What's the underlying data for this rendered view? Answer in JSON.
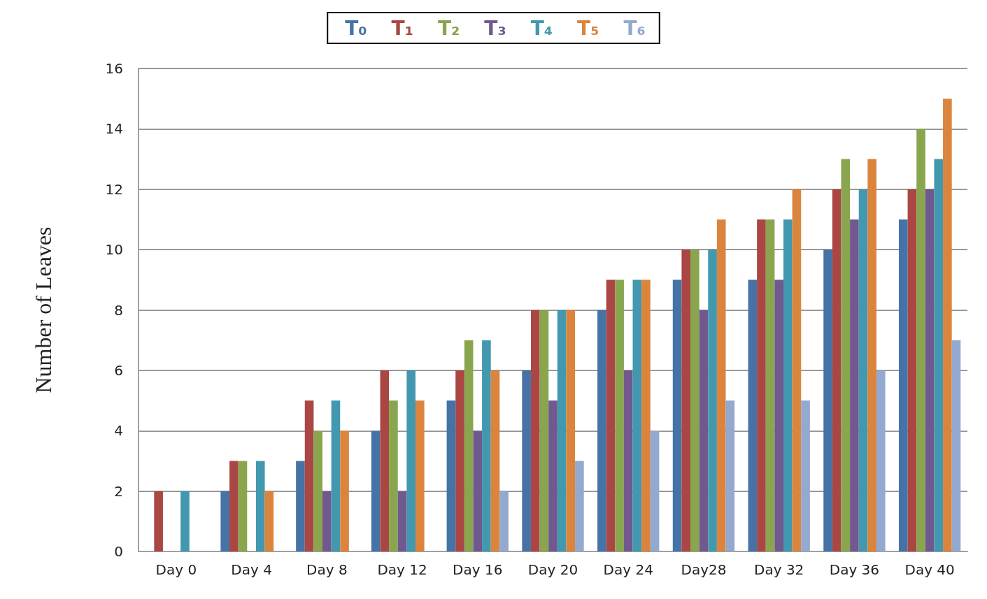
{
  "chart_data": {
    "type": "bar",
    "ylabel": "Number of Leaves",
    "categories": [
      "Day 0",
      "Day 4",
      "Day 8",
      "Day 12",
      "Day 16",
      "Day 20",
      "Day 24",
      "Day28",
      "Day 32",
      "Day 36",
      "Day 40"
    ],
    "series": [
      {
        "name": "T₀",
        "color": "#4572a7",
        "values": [
          0,
          2,
          3,
          4,
          5,
          6,
          8,
          9,
          9,
          10,
          11
        ]
      },
      {
        "name": "T₁",
        "color": "#aa4643",
        "values": [
          2,
          3,
          5,
          6,
          6,
          8,
          9,
          10,
          11,
          12,
          12
        ]
      },
      {
        "name": "T₂",
        "color": "#89a54e",
        "values": [
          0,
          3,
          4,
          5,
          7,
          8,
          9,
          10,
          11,
          13,
          14
        ]
      },
      {
        "name": "T₃",
        "color": "#71588f",
        "values": [
          0,
          0,
          2,
          2,
          4,
          5,
          6,
          8,
          9,
          11,
          12
        ]
      },
      {
        "name": "T₄",
        "color": "#4198af",
        "values": [
          2,
          3,
          5,
          6,
          7,
          8,
          9,
          10,
          11,
          12,
          13
        ]
      },
      {
        "name": "T₅",
        "color": "#db843d",
        "values": [
          0,
          2,
          4,
          5,
          6,
          8,
          9,
          11,
          12,
          13,
          15
        ]
      },
      {
        "name": "T₆",
        "color": "#93a9cf",
        "values": [
          0,
          0,
          0,
          0,
          2,
          3,
          4,
          5,
          5,
          6,
          7
        ]
      }
    ],
    "ylim": [
      0,
      16
    ],
    "yticks": [
      0,
      2,
      4,
      6,
      8,
      10,
      12,
      14,
      16
    ],
    "grid": "y",
    "legend": "top"
  }
}
